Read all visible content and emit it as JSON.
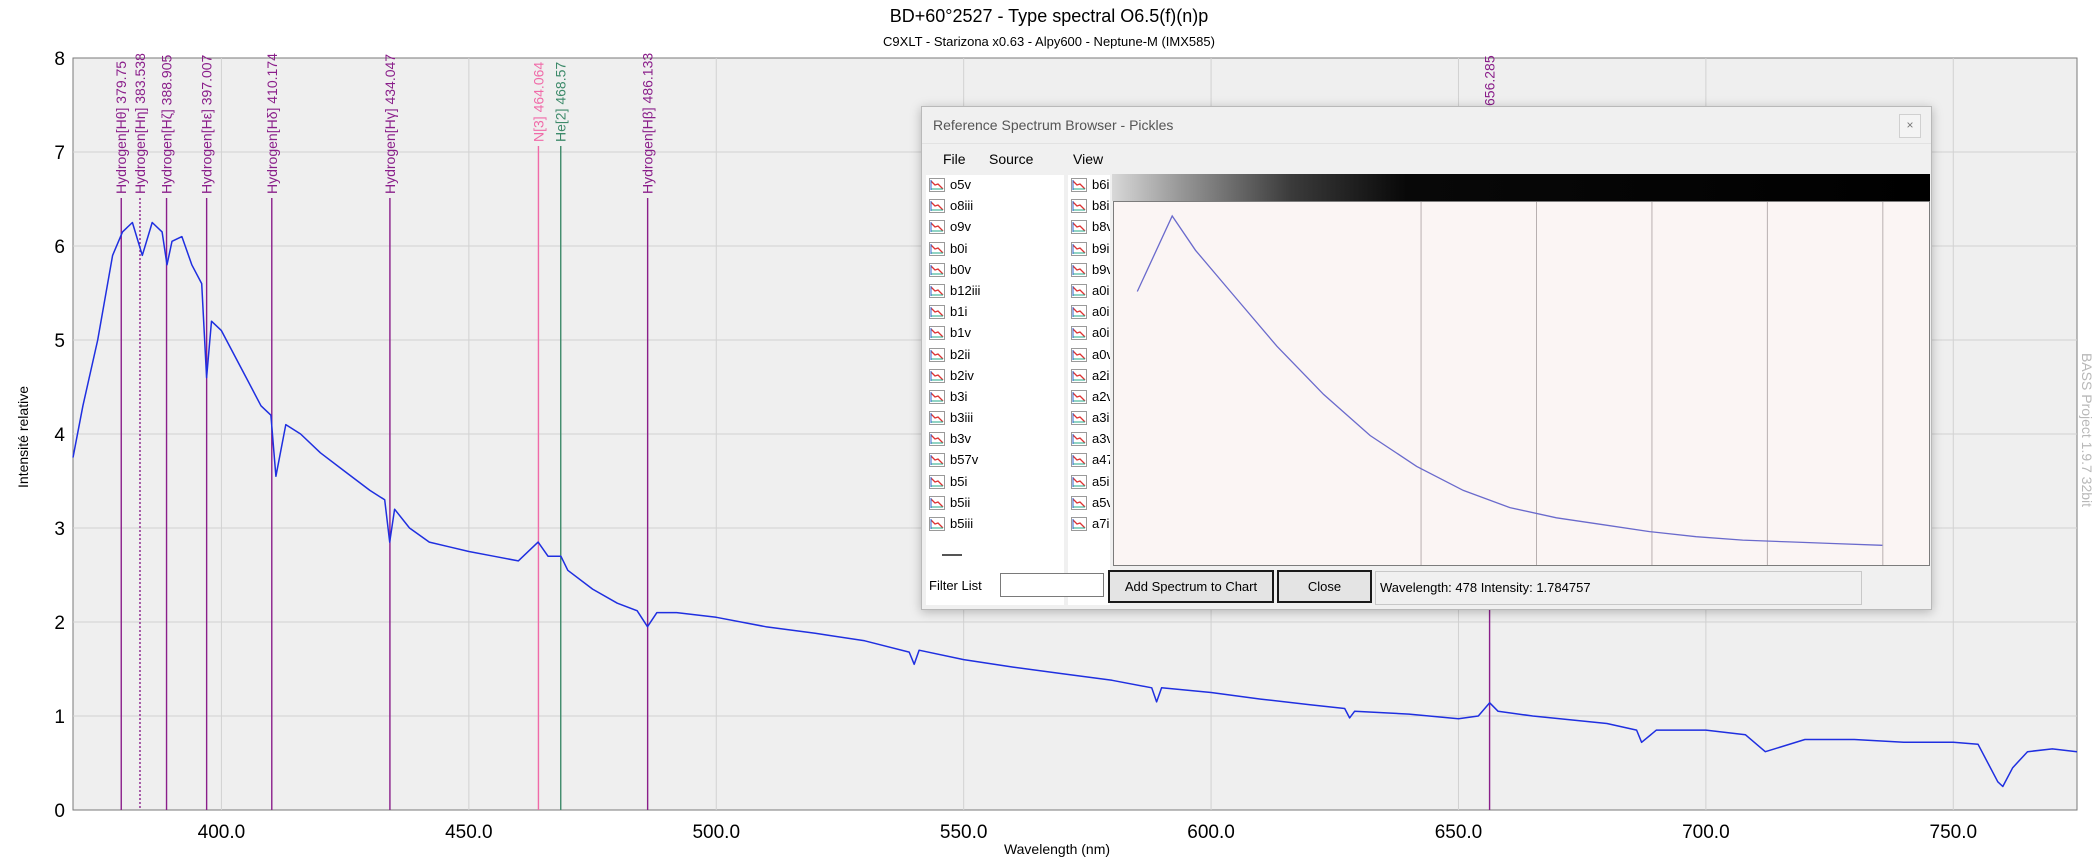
{
  "chart_data": {
    "type": "line",
    "title": "BD+60°2527 - Type spectral O6.5(f)(n)p",
    "subtitle": "C9XLT - Starizona x0.63 - Alpy600 - Neptune-M (IMX585)",
    "xlabel": "Wavelength (nm)",
    "ylabel": "Intensité relative",
    "xlim": [
      370,
      775
    ],
    "ylim": [
      0,
      8
    ],
    "x_ticks": [
      "400.0",
      "450.0",
      "500.0",
      "550.0",
      "600.0",
      "650.0",
      "700.0",
      "750.0"
    ],
    "y_ticks": [
      "0",
      "1",
      "2",
      "3",
      "4",
      "5",
      "6",
      "7",
      "8"
    ],
    "grid": true,
    "line_color": "#1f2fe0",
    "series": [
      {
        "x": [
          370,
          372,
          375,
          378,
          380,
          382,
          384,
          386,
          388,
          389,
          390,
          392,
          394,
          396,
          397,
          398,
          400,
          402,
          405,
          408,
          410,
          411,
          413,
          416,
          420,
          425,
          430,
          433,
          434,
          435,
          438,
          442,
          446,
          450,
          455,
          460,
          464,
          466,
          468.6,
          470,
          475,
          480,
          484,
          486.1,
          488,
          492,
          500,
          510,
          520,
          530,
          539,
          540,
          541,
          550,
          560,
          570,
          580,
          588,
          589,
          590,
          600,
          610,
          620,
          627,
          628,
          629,
          640,
          650,
          654,
          656.3,
          658,
          665,
          680,
          686,
          687,
          690,
          700,
          708,
          712,
          720,
          730,
          740,
          750,
          755,
          759,
          760,
          762,
          765,
          770,
          775
        ],
        "values": [
          3.75,
          4.3,
          5.0,
          5.9,
          6.15,
          6.25,
          5.9,
          6.25,
          6.15,
          5.8,
          6.05,
          6.1,
          5.8,
          5.6,
          4.6,
          5.2,
          5.1,
          4.9,
          4.6,
          4.3,
          4.2,
          3.55,
          4.1,
          4.0,
          3.8,
          3.6,
          3.4,
          3.3,
          2.85,
          3.2,
          3.0,
          2.85,
          2.8,
          2.75,
          2.7,
          2.65,
          2.85,
          2.7,
          2.7,
          2.55,
          2.35,
          2.2,
          2.12,
          1.95,
          2.1,
          2.1,
          2.05,
          1.95,
          1.88,
          1.8,
          1.68,
          1.55,
          1.7,
          1.6,
          1.52,
          1.45,
          1.38,
          1.3,
          1.15,
          1.3,
          1.25,
          1.18,
          1.12,
          1.08,
          0.98,
          1.05,
          1.02,
          0.97,
          1.0,
          1.14,
          1.05,
          1.0,
          0.92,
          0.85,
          0.72,
          0.85,
          0.85,
          0.8,
          0.62,
          0.75,
          0.75,
          0.72,
          0.72,
          0.7,
          0.3,
          0.25,
          0.45,
          0.62,
          0.65,
          0.62
        ]
      }
    ],
    "line_ids": [
      {
        "label": "Hydrogen[Hθ] 379.75",
        "x": 379.75,
        "color": "#8a1e8a"
      },
      {
        "label": "Hydrogen[Hη] 383.538",
        "x": 383.538,
        "color": "#8a1e8a"
      },
      {
        "label": "Hydrogen[Hζ] 388.905",
        "x": 388.905,
        "color": "#8a1e8a"
      },
      {
        "label": "Hydrogen[Hε] 397.007",
        "x": 397.007,
        "color": "#8a1e8a"
      },
      {
        "label": "Hydrogen[Hδ] 410.174",
        "x": 410.174,
        "color": "#8a1e8a"
      },
      {
        "label": "Hydrogen[Hγ] 434.047",
        "x": 434.047,
        "color": "#8a1e8a"
      },
      {
        "label": "N[3] 464.064",
        "x": 464.064,
        "color": "#f06aa8"
      },
      {
        "label": "He[2] 468.57",
        "x": 468.57,
        "color": "#3d8a6a"
      },
      {
        "label": "Hydrogen[Hβ] 486.133",
        "x": 486.133,
        "color": "#8a1e8a"
      },
      {
        "label": "656.285",
        "x": 656.285,
        "color": "#8a1e8a"
      }
    ]
  },
  "watermark": "BASS Project 1.9.7 32bit",
  "dialog": {
    "title": "Reference Spectrum Browser - Pickles",
    "close_glyph": "×",
    "menu": [
      "File",
      "Source",
      "View"
    ],
    "list_left": [
      "o5v",
      "o8iii",
      "o9v",
      "b0i",
      "b0v",
      "b12iii",
      "b1i",
      "b1v",
      "b2ii",
      "b2iv",
      "b3i",
      "b3iii",
      "b3v",
      "b57v",
      "b5i",
      "b5ii",
      "b5iii"
    ],
    "list_right": [
      "b6i",
      "b8i",
      "b8v",
      "b9i",
      "b9v",
      "a0i",
      "a0i",
      "a0i",
      "a0v",
      "a2i",
      "a2v",
      "a3i",
      "a3v",
      "a47",
      "a5i",
      "a5v",
      "a7i"
    ],
    "filter_label": "Filter List",
    "filter_value": "",
    "add_button": "Add Spectrum to Chart",
    "close_button": "Close",
    "status": "Wavelength: 478 Intensity: 1.784757",
    "ref_spectrum": {
      "x": [
        380,
        395,
        405,
        420,
        440,
        460,
        480,
        500,
        520,
        540,
        560,
        580,
        600,
        620,
        640,
        660,
        680,
        700
      ],
      "values": [
        0.78,
        1.0,
        0.9,
        0.78,
        0.62,
        0.48,
        0.36,
        0.27,
        0.2,
        0.15,
        0.12,
        0.1,
        0.08,
        0.065,
        0.055,
        0.05,
        0.045,
        0.04
      ]
    }
  }
}
